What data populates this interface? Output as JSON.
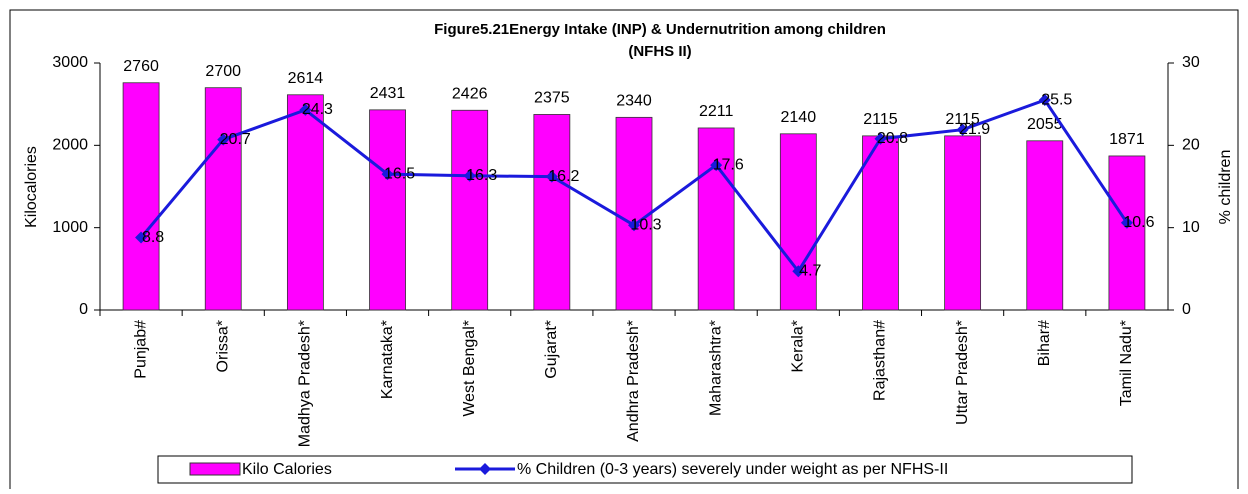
{
  "chart_data": {
    "type": "bar_line",
    "title": "Figure5.21Energy Intake (INP) & Undernutrition among children",
    "subtitle": "(NFHS II)",
    "y_label": "Kilocalories",
    "y2_label": "% children",
    "categories": [
      "Punjab#",
      "Orissa*",
      "Madhya Pradesh*",
      "Karnataka*",
      "West Bengal*",
      "Gujarat*",
      "Andhra Pradesh*",
      "Maharashtra*",
      "Kerala*",
      "Rajasthan#",
      "Uttar Pradesh*",
      "Bihar#",
      "Tamil Nadu*"
    ],
    "series": [
      {
        "name": "Kilo Calories",
        "type": "bar",
        "color": "#ff00ff",
        "values": [
          2760,
          2700,
          2614,
          2431,
          2426,
          2375,
          2340,
          2211,
          2140,
          2115,
          2115,
          2055,
          1871
        ]
      },
      {
        "name": "% Children (0-3 years) severely under weight as per NFHS-II",
        "type": "line",
        "axis": "y2",
        "color": "#1a1adc",
        "values": [
          8.8,
          20.7,
          24.3,
          16.5,
          16.3,
          16.2,
          10.3,
          17.6,
          4.7,
          20.8,
          21.9,
          25.5,
          10.6
        ]
      }
    ],
    "ylim": [
      0,
      3000
    ],
    "yticks": [
      0,
      1000,
      2000,
      3000
    ],
    "y2lim": [
      0,
      30
    ],
    "y2ticks": [
      0,
      10,
      20,
      30
    ],
    "grid": false,
    "legend": "bottom"
  }
}
